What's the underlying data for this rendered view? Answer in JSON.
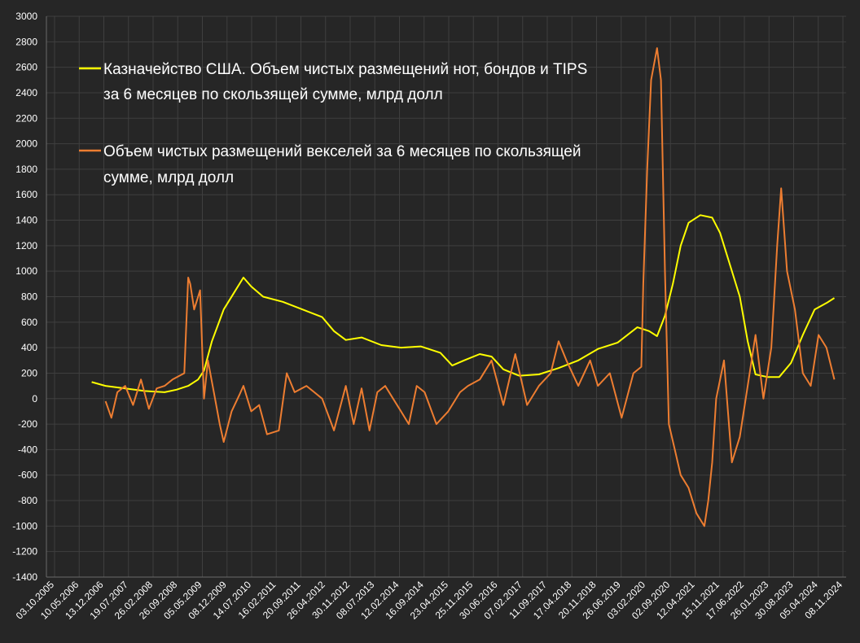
{
  "chart_data": {
    "type": "line",
    "title": "",
    "xlabel": "",
    "ylabel": "",
    "ylim": [
      -1400,
      3000
    ],
    "y_ticks": [
      3000,
      2800,
      2600,
      2400,
      2200,
      2000,
      1800,
      1600,
      1400,
      1200,
      1000,
      800,
      600,
      400,
      200,
      0,
      -200,
      -400,
      -600,
      -800,
      -1000,
      -1200,
      -1400
    ],
    "x_ticks": [
      "03.10.2005",
      "10.05.2006",
      "13.12.2006",
      "19.07.2007",
      "26.02.2008",
      "26.09.2008",
      "05.05.2009",
      "08.12.2009",
      "14.07.2010",
      "16.02.2011",
      "20.09.2011",
      "26.04.2012",
      "30.11.2012",
      "08.07.2013",
      "12.02.2014",
      "16.09.2014",
      "23.04.2015",
      "25.11.2015",
      "30.06.2016",
      "07.02.2017",
      "11.09.2017",
      "17.04.2018",
      "20.11.2018",
      "26.06.2019",
      "03.02.2020",
      "02.09.2020",
      "12.04.2021",
      "15.11.2021",
      "17.06.2022",
      "26.01.2023",
      "30.08.2023",
      "05.04.2024",
      "08.11.2024"
    ],
    "grid": true,
    "legend_position": "top-left",
    "background_color": "#262626",
    "grid_color": "#3f3f3f",
    "series": [
      {
        "name": "Казначейство США. Объем чистых размещений нот, бондов и TIPS за 6 месяцев по скользящей сумме, млрд долл",
        "legend_lines": [
          "Казначейство США. Объем чистых размещений нот, бондов и TIPS",
          "за 6 месяцев по скользящей сумме, млрд долл"
        ],
        "color": "#ffff00",
        "x": [
          2006.15,
          2006.5,
          2007.0,
          2007.5,
          2008.0,
          2008.3,
          2008.6,
          2008.85,
          2009.0,
          2009.2,
          2009.5,
          2009.8,
          2010.0,
          2010.2,
          2010.5,
          2011.0,
          2011.5,
          2012.0,
          2012.3,
          2012.6,
          2013.0,
          2013.5,
          2014.0,
          2014.5,
          2015.0,
          2015.3,
          2015.6,
          2016.0,
          2016.3,
          2016.6,
          2017.0,
          2017.5,
          2018.0,
          2018.5,
          2019.0,
          2019.5,
          2020.0,
          2020.3,
          2020.5,
          2020.7,
          2020.9,
          2021.1,
          2021.3,
          2021.6,
          2021.9,
          2022.1,
          2022.3,
          2022.6,
          2022.8,
          2023.0,
          2023.3,
          2023.6,
          2023.9,
          2024.2,
          2024.5,
          2024.8,
          2025.0
        ],
        "y": [
          130,
          100,
          80,
          60,
          50,
          70,
          100,
          150,
          220,
          450,
          700,
          850,
          950,
          880,
          800,
          760,
          700,
          640,
          530,
          460,
          480,
          420,
          400,
          410,
          360,
          260,
          300,
          350,
          330,
          230,
          180,
          190,
          240,
          300,
          390,
          440,
          560,
          530,
          490,
          650,
          900,
          1200,
          1380,
          1440,
          1420,
          1300,
          1100,
          800,
          450,
          190,
          170,
          170,
          280,
          500,
          700,
          750,
          790
        ]
      },
      {
        "name": "Объем чистых размещений векселей за 6 месяцев по скользящей сумме, млрд долл",
        "legend_lines": [
          "Объем чистых размещений векселей за 6 месяцев по скользящей",
          "сумме, млрд долл"
        ],
        "color": "#ed7d31",
        "x": [
          2006.5,
          2006.65,
          2006.8,
          2007.0,
          2007.2,
          2007.4,
          2007.6,
          2007.8,
          2008.0,
          2008.2,
          2008.5,
          2008.6,
          2008.65,
          2008.75,
          2008.9,
          2009.0,
          2009.1,
          2009.25,
          2009.4,
          2009.5,
          2009.7,
          2009.9,
          2010.0,
          2010.2,
          2010.4,
          2010.6,
          2010.9,
          2011.1,
          2011.3,
          2011.6,
          2011.8,
          2012.0,
          2012.3,
          2012.6,
          2012.8,
          2013.0,
          2013.2,
          2013.4,
          2013.6,
          2013.8,
          2014.0,
          2014.2,
          2014.4,
          2014.6,
          2014.9,
          2015.2,
          2015.5,
          2015.7,
          2016.0,
          2016.3,
          2016.6,
          2016.9,
          2017.2,
          2017.5,
          2017.8,
          2018.0,
          2018.2,
          2018.5,
          2018.8,
          2019.0,
          2019.3,
          2019.6,
          2019.9,
          2020.1,
          2020.15,
          2020.25,
          2020.35,
          2020.5,
          2020.6,
          2020.7,
          2020.8,
          2020.95,
          2021.1,
          2021.3,
          2021.5,
          2021.7,
          2021.8,
          2021.9,
          2022.0,
          2022.2,
          2022.4,
          2022.6,
          2022.8,
          2023.0,
          2023.2,
          2023.4,
          2023.55,
          2023.65,
          2023.8,
          2024.0,
          2024.2,
          2024.4,
          2024.6,
          2024.8,
          2025.0
        ],
        "y": [
          -20,
          -150,
          50,
          100,
          -50,
          150,
          -80,
          80,
          100,
          150,
          200,
          950,
          900,
          700,
          850,
          0,
          300,
          50,
          -200,
          -340,
          -100,
          30,
          100,
          -100,
          -50,
          -280,
          -250,
          200,
          50,
          100,
          50,
          0,
          -250,
          100,
          -200,
          80,
          -250,
          50,
          100,
          0,
          -100,
          -200,
          100,
          50,
          -200,
          -100,
          50,
          100,
          150,
          300,
          -50,
          350,
          -50,
          100,
          200,
          450,
          300,
          100,
          300,
          100,
          200,
          -150,
          200,
          250,
          900,
          1800,
          2500,
          2750,
          2500,
          1000,
          -200,
          -400,
          -600,
          -700,
          -900,
          -1000,
          -800,
          -500,
          0,
          300,
          -500,
          -300,
          100,
          500,
          0,
          400,
          1200,
          1650,
          1000,
          700,
          200,
          100,
          500,
          400,
          150
        ]
      }
    ]
  }
}
